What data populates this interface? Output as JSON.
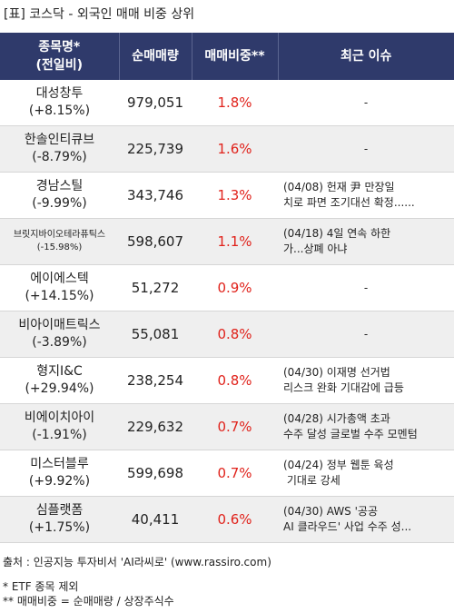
{
  "title": "[표] 코스닥 - 외국인 매매 비중 상위",
  "header": {
    "col1_line1": "종목명*",
    "col1_line2": "(전일비)",
    "col2": "순매매량",
    "col3": "매매비중**",
    "col4": "최근 이슈"
  },
  "rows": [
    {
      "name": "대성창투",
      "change": "(+8.15%)",
      "volume": "979,051",
      "ratio": "1.8%",
      "issue1": "-",
      "issue2": ""
    },
    {
      "name": "한솔인티큐브",
      "change": "(-8.79%)",
      "volume": "225,739",
      "ratio": "1.6%",
      "issue1": "-",
      "issue2": ""
    },
    {
      "name": "경남스틸",
      "change": "(-9.99%)",
      "volume": "343,746",
      "ratio": "1.3%",
      "issue1": "(04/08) 헌재 尹 만장일",
      "issue2": "치로 파면 조기대선 확정......"
    },
    {
      "name": "브릿지바이오테라퓨틱스",
      "change": "(-15.98%)",
      "volume": "598,607",
      "ratio": "1.1%",
      "issue1": "(04/18) 4일 연속 하한",
      "issue2": "가...상폐 아냐"
    },
    {
      "name": "에이에스텍",
      "change": "(+14.15%)",
      "volume": "51,272",
      "ratio": "0.9%",
      "issue1": "-",
      "issue2": ""
    },
    {
      "name": "비아이매트릭스",
      "change": "(-3.89%)",
      "volume": "55,081",
      "ratio": "0.8%",
      "issue1": "-",
      "issue2": ""
    },
    {
      "name": "형지I&C",
      "change": "(+29.94%)",
      "volume": "238,254",
      "ratio": "0.8%",
      "issue1": "(04/30) 이재명 선거법",
      "issue2": "리스크 완화 기대감에 급등"
    },
    {
      "name": "비에이치아이",
      "change": "(-1.91%)",
      "volume": "229,632",
      "ratio": "0.7%",
      "issue1": "(04/28) 시가총액 초과",
      "issue2": "수주 달성 글로벌 수주 모멘텀"
    },
    {
      "name": "미스터블루",
      "change": "(+9.92%)",
      "volume": "599,698",
      "ratio": "0.7%",
      "issue1": "(04/24) 정부 웹툰 육성",
      "issue2": " 기대로 강세"
    },
    {
      "name": "심플랫폼",
      "change": "(+1.75%)",
      "volume": "40,411",
      "ratio": "0.6%",
      "issue1": "(04/30) AWS '공공",
      "issue2": "AI 클라우드' 사업 수주 성..."
    }
  ],
  "footer": {
    "source": "출처 : 인공지능 투자비서 'AI라씨로' (www.rassiro.com)",
    "note1": "* ETF 종목 제외",
    "note2": "** 매매비중 = 순매매량 / 상장주식수"
  }
}
